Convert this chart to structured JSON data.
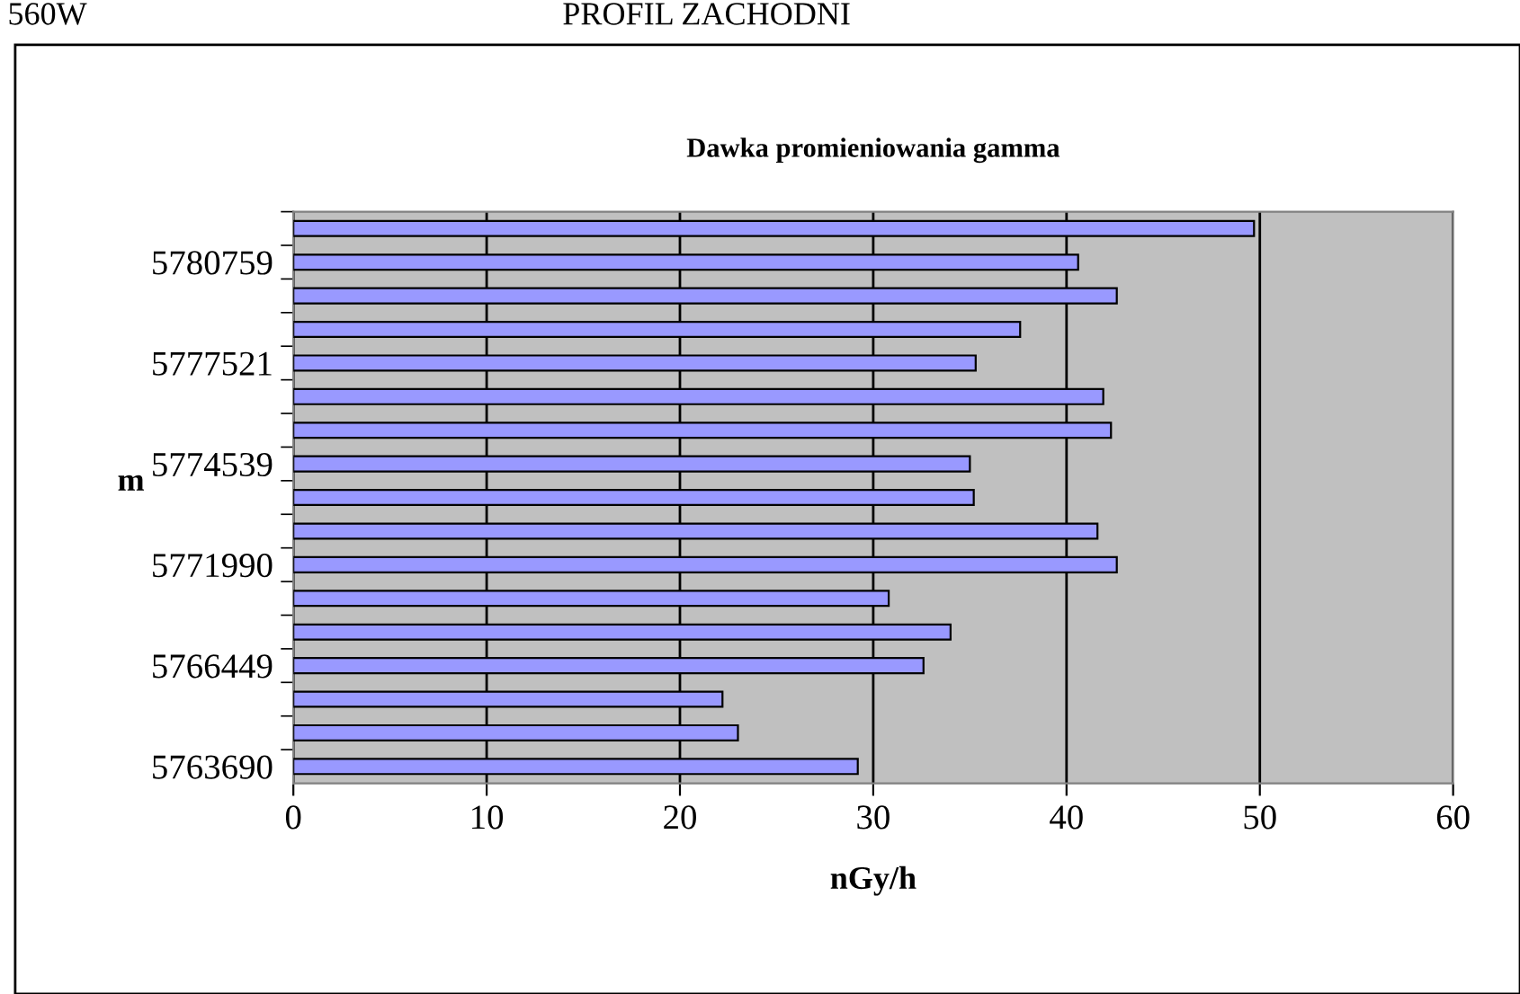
{
  "chart_data": {
    "type": "bar",
    "orientation": "horizontal",
    "title": "Dawka promieniowania gamma",
    "xlabel": "nGy/h",
    "ylabel": "m",
    "annotations": [
      "560W",
      "PROFIL ZACHODNI"
    ],
    "categories": [
      null,
      "5780759",
      null,
      null,
      "5777521",
      null,
      null,
      "5774539",
      null,
      null,
      "5771990",
      null,
      null,
      "5766449",
      null,
      null,
      "5763690"
    ],
    "series": [
      {
        "color": "#9999ff",
        "values": [
          49.7,
          40.6,
          42.6,
          37.6,
          35.3,
          41.9,
          42.3,
          35.0,
          35.2,
          41.6,
          42.6,
          30.8,
          34.0,
          32.6,
          22.2,
          23.0,
          29.2
        ]
      }
    ],
    "xlim": [
      0,
      60
    ],
    "xticks": [
      0,
      10,
      20,
      30,
      40,
      50,
      60
    ],
    "grid": "x",
    "legend": false
  }
}
